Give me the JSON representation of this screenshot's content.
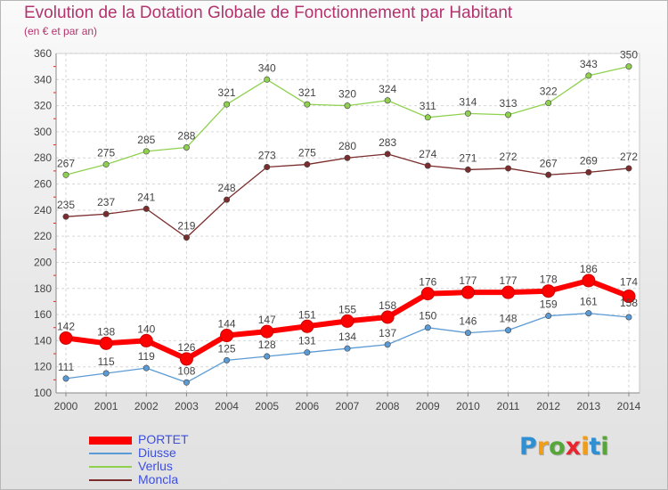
{
  "title": "Evolution de la Dotation Globale de Fonctionnement par Habitant",
  "subtitle": "(en € et par an)",
  "logo": {
    "letters": [
      "P",
      "r",
      "o",
      "x",
      "i",
      "t",
      "i"
    ],
    "colors": [
      "#2f8fd3",
      "#f29d17",
      "#57a639",
      "#e8262f",
      "#f29d17",
      "#2f8fd3",
      "#57a639"
    ]
  },
  "chart_data": {
    "type": "line",
    "x": [
      "2000",
      "2001",
      "2002",
      "2003",
      "2004",
      "2005",
      "2006",
      "2007",
      "2008",
      "2009",
      "2010",
      "2011",
      "2012",
      "2013",
      "2014"
    ],
    "ylim": [
      100,
      360
    ],
    "yticks": [
      "100",
      "120",
      "140",
      "160",
      "180",
      "200",
      "220",
      "240",
      "260",
      "280",
      "300",
      "320",
      "340",
      "360"
    ],
    "grid": true,
    "legend_position": "bottom-left",
    "series": [
      {
        "name": "PORTET",
        "color": "#ff0000",
        "values": [
          142,
          138,
          140,
          126,
          144,
          147,
          151,
          155,
          158,
          176,
          177,
          177,
          178,
          186,
          174
        ]
      },
      {
        "name": "Diusse",
        "color": "#5b9bd5",
        "values": [
          111,
          115,
          119,
          108,
          125,
          128,
          131,
          134,
          137,
          150,
          146,
          148,
          159,
          161,
          158
        ]
      },
      {
        "name": "Verlus",
        "color": "#8fd14f",
        "values": [
          267,
          275,
          285,
          288,
          321,
          340,
          321,
          320,
          324,
          311,
          314,
          313,
          322,
          343,
          350
        ]
      },
      {
        "name": "Moncla",
        "color": "#7b2c2c",
        "values": [
          235,
          237,
          241,
          219,
          248,
          273,
          275,
          280,
          283,
          274,
          271,
          272,
          267,
          269,
          272
        ]
      }
    ]
  }
}
